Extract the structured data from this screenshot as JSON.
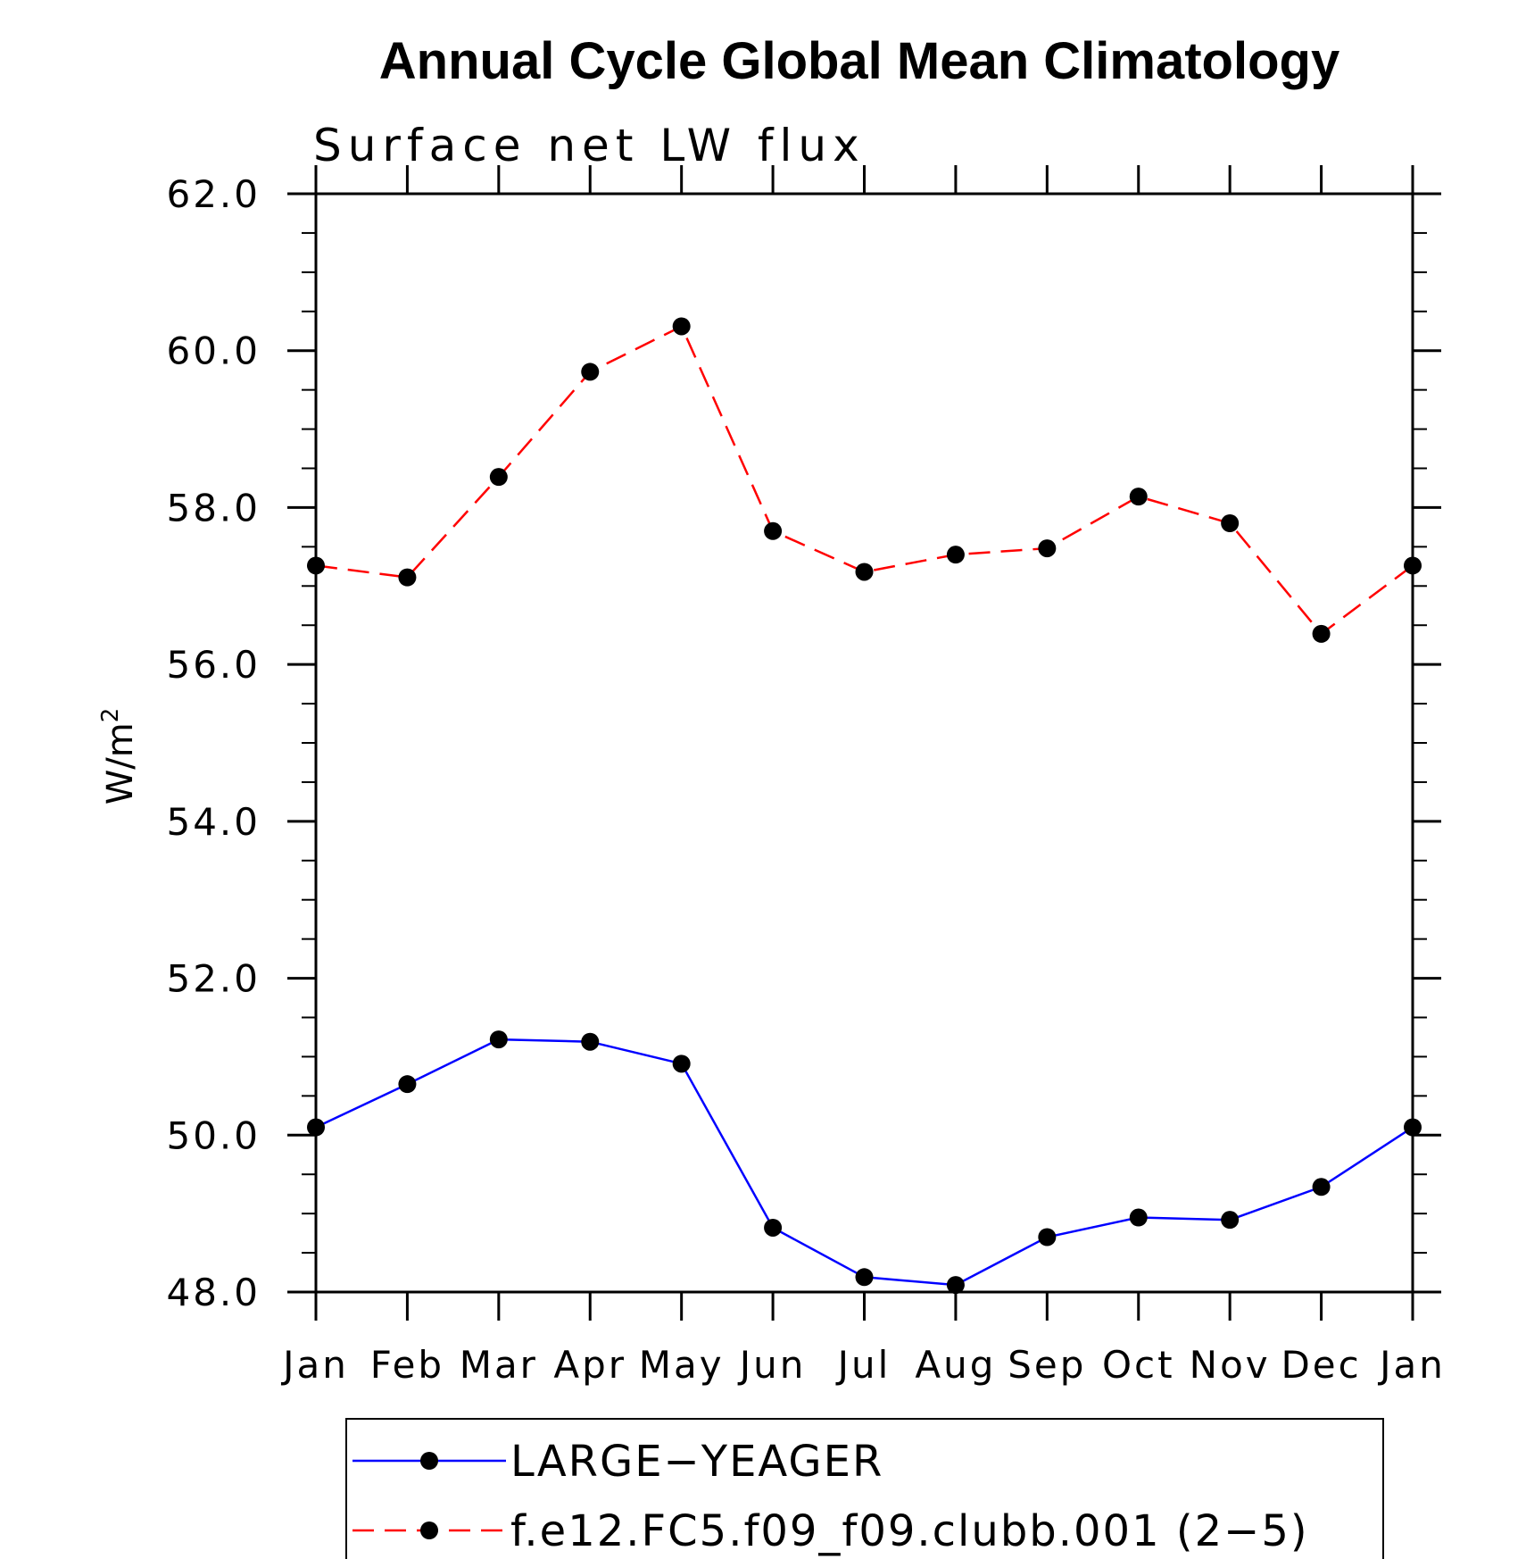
{
  "chart_data": {
    "type": "line",
    "title": "Annual Cycle Global Mean Climatology",
    "subtitle": "Surface net LW flux",
    "ylabel": "W/m",
    "ylabel_superscript": "2",
    "xlabel": "",
    "categories": [
      "Jan",
      "Feb",
      "Mar",
      "Apr",
      "May",
      "Jun",
      "Jul",
      "Aug",
      "Sep",
      "Oct",
      "Nov",
      "Dec",
      "Jan"
    ],
    "ylim": [
      48.0,
      62.0
    ],
    "yticks": [
      "48.0",
      "50.0",
      "52.0",
      "54.0",
      "56.0",
      "58.0",
      "60.0",
      "62.0"
    ],
    "grid": false,
    "legend_position": "bottom",
    "series": [
      {
        "name": "LARGE−YEAGER",
        "color": "#0000ff",
        "dash": "solid",
        "marker": "filled-circle",
        "values": [
          50.1,
          50.65,
          51.22,
          51.19,
          50.91,
          48.82,
          48.19,
          48.09,
          48.7,
          48.95,
          48.92,
          49.34,
          50.1
        ]
      },
      {
        "name": "f.e12.FC5.f09_f09.clubb.001 (2−5)",
        "color": "#ff0000",
        "dash": "dashed",
        "marker": "filled-circle",
        "values": [
          57.26,
          57.11,
          58.39,
          59.73,
          60.31,
          57.7,
          57.18,
          57.4,
          57.48,
          58.14,
          57.8,
          56.39,
          57.26
        ]
      }
    ]
  }
}
